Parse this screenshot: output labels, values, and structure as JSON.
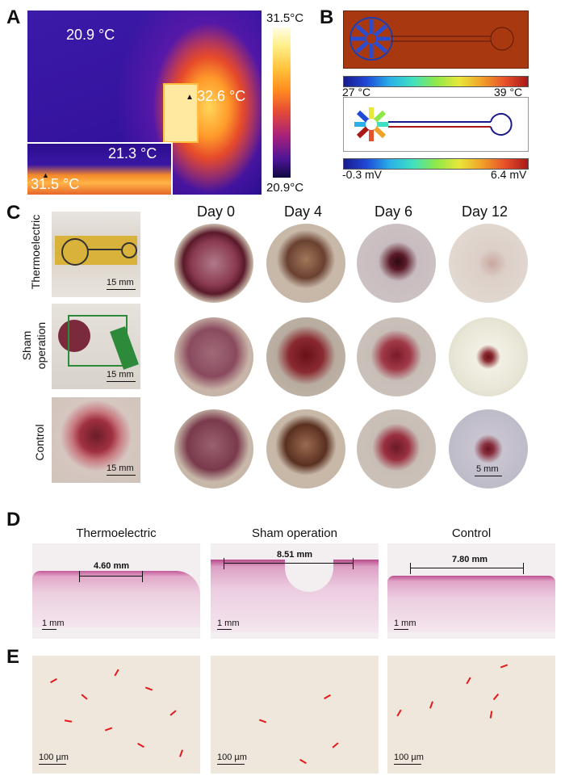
{
  "panels": {
    "A": "A",
    "B": "B",
    "C": "C",
    "D": "D",
    "E": "E"
  },
  "panelA": {
    "ambient": "20.9 °C",
    "device": "32.6 °C",
    "inset_top": "21.3 °C",
    "inset_bottom": "31.5 °C",
    "cbar_max": "31.5°C",
    "cbar_min": "20.9°C"
  },
  "panelB": {
    "temp_min": "27 °C",
    "temp_max": "39 °C",
    "volt_min": "-0.3 mV",
    "volt_max": "6.4 mV"
  },
  "panelC": {
    "days": [
      "Day 0",
      "Day 4",
      "Day 6",
      "Day 12"
    ],
    "rows": [
      "Thermoelectric",
      "Sham\noperation",
      "Control"
    ],
    "row_labels": {
      "r1": "Thermoelectric",
      "r2a": "Sham",
      "r2b": "operation",
      "r3": "Control"
    },
    "scale_photo": "15 mm",
    "scale_wound": "5 mm"
  },
  "panelD": {
    "titles": [
      "Thermoelectric",
      "Sham operation",
      "Control"
    ],
    "measurements": [
      "4.60 mm",
      "8.51 mm",
      "7.80 mm"
    ],
    "scale": "1 mm"
  },
  "panelE": {
    "scale": "100 µm"
  },
  "colors": {
    "tissue_pink": "#d98ab0",
    "arrow_red": "#e21a1a",
    "substrate": "#a8380f"
  }
}
